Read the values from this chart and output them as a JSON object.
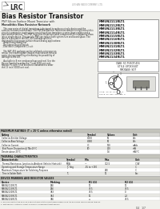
{
  "title": "Bias Resistor Transistor",
  "company_full": "LESHAN RADIO COMPANY, LTD.",
  "subtitle1": "PNP Silicon Surface Mount Transistor with",
  "subtitle2": "Monolithic Bias Resistor Network",
  "body_lines": [
    "   This new series of digital transistors is designed to replace a single-device and the",
    "external resistors now contain. The PNP Bias Resistor Transistors contain a single monolithic",
    "circuit a composite construction consisting of two transistor, a series-base-resistor and a",
    "base-emitter resistor. This PNP Transistor, Diode activated components for integrating them",
    "into a single device. The use of a PNP can reduce both system size and board space. The",
    "device is housed in the SOT-416 package which is",
    "designed for low power surface mount analog applications:",
    " - Amplifiers/preamplifier",
    " - Resistance Sound Switch",
    " - Electronic Component Circuit",
    "",
    "   The SOT-416 package can be soldered using wave or",
    "reflow. The resulting part images make device removal",
    "easier during reworking eliminating the possibility of",
    "damage to the die.",
    "",
    "   Available in 8 mm embossed tape and reel. Use the",
    "Device Symbol to order the 7 inch 3000 unit reel.",
    "Replace T1 with T3 at Electronic Datasheet to order",
    "the 13 inch 10000 unit reel."
  ],
  "part_numbers": [
    "MMUN2111RLT1",
    "MMUN2112RLT1",
    "MMUN2113RLT1",
    "MMUN2114RLT1",
    "MMUN2115RLT1",
    "MMUN2116RLT1",
    "MMUN2130RLT1",
    "MMUN2131RLT1",
    "MMUN2132RLT1",
    "MMUN2133RLT1",
    "MMUN2134RLT1"
  ],
  "pkg_lines": [
    "CASE: SC-75/SOT-416",
    "STYLE: EPOXY/SOT",
    "PACKAGE: SOT"
  ],
  "pkg_dim_lines": [
    "CASE:  SC-75  SOT-416  5",
    "STYLE: PC  EPC  SOT-416  3"
  ],
  "max_ratings_title": "MAXIMUM RATINGS (T = 25°C unless otherwise noted)",
  "max_ratings_headers": [
    "Rating",
    "Symbol",
    "Values",
    "Unit"
  ],
  "max_ratings": [
    [
      "Collector-Emitter Voltage",
      "VCEO",
      "50",
      "Vdc"
    ],
    [
      "Collector-Base Voltage",
      "VCBO",
      "50",
      "Vdc"
    ],
    [
      "Collector Current",
      "IC",
      "100",
      "mAdc"
    ],
    [
      "Total Power Dissipation @ TA=25°C",
      "PD",
      "200",
      "mW"
    ],
    [
      "Derate above 25°C",
      "",
      "1.6",
      "mW/°C"
    ]
  ],
  "thermal_title": "THERMAL CHARACTERISTICS",
  "thermal_headers": [
    "Characteristic",
    "Symbol",
    "Min",
    "Max",
    "Unit"
  ],
  "thermal": [
    [
      "Thermal Resistance, Junction-to-Ambient (Infinite Heatsink)",
      "RθJA",
      "—",
      "312.5",
      "°C/W"
    ],
    [
      "Operating and Storage Temperature Range",
      "TJ, Tstg",
      "-55 to +150",
      "",
      "°C"
    ],
    [
      "Maximum Temperature for Soldering Purposes",
      "",
      "",
      "260",
      "°C"
    ],
    [
      "Time in Solder Bath",
      "TL",
      "",
      "10",
      "Sec"
    ]
  ],
  "device_title": "DEVICE MARKING AND RESISTOR VALUES",
  "device_headers": [
    "Device",
    "Marking",
    "R1 (Ω)",
    "R2 (Ω)"
  ],
  "device_rows": [
    [
      "MMUN2111RLT1",
      "1BE",
      "10",
      "10"
    ],
    [
      "MMUN2113RLT1",
      "1B6",
      "47.5",
      "47.5"
    ],
    [
      "MMUN2131RLT1",
      "3B3",
      "47.5",
      "0"
    ],
    [
      "MMUN2133RLT1",
      "3B4",
      "10",
      "2.2"
    ],
    [
      "MMUN2134RLT1",
      "3B6",
      "∞",
      "47.5"
    ]
  ],
  "footnote1": "1. Devices constructed from 99.9 percent pure nitrite circuit board baked using the minimum recommended torques.",
  "footnote2": "2. Test devices, installed current 9.75000 or subsequent best devices.",
  "page_info": "Q4   1/7",
  "bg_color": "#f0f0ec",
  "white": "#ffffff",
  "dark_gray": "#888888",
  "light_gray": "#d8d8d4",
  "table_section_bg": "#c4c4bc",
  "table_row_alt": "#e8e8e4",
  "text_dark": "#1a1a1a",
  "text_mid": "#444444",
  "text_light": "#888888"
}
